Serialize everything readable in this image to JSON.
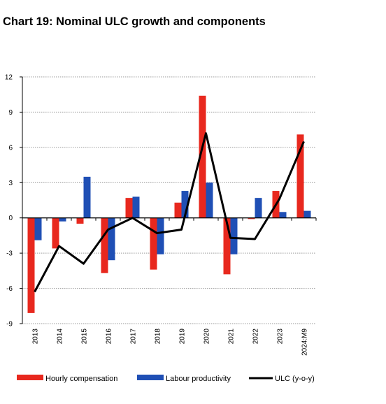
{
  "title": "Chart 19: Nominal ULC growth and components",
  "chart_data": {
    "type": "bar",
    "categories": [
      "2013",
      "2014",
      "2015",
      "2016",
      "2017",
      "2018",
      "2019",
      "2020",
      "2021",
      "2022",
      "2023",
      "2024:M9"
    ],
    "series": [
      {
        "name": "Hourly compensation",
        "kind": "bar",
        "color": "#e8281e",
        "values": [
          -8.1,
          -2.6,
          -0.5,
          -4.7,
          1.7,
          -4.4,
          1.3,
          10.4,
          -4.8,
          -0.1,
          2.3,
          7.1
        ]
      },
      {
        "name": "Labour productivity",
        "kind": "bar",
        "color": "#1f4fb5",
        "values": [
          -1.9,
          -0.3,
          3.5,
          -3.6,
          1.8,
          -3.1,
          2.3,
          3.0,
          -3.1,
          1.7,
          0.5,
          0.6
        ]
      },
      {
        "name": "ULC (y-o-y)",
        "kind": "line",
        "color": "#000000",
        "values": [
          -6.3,
          -2.4,
          -3.9,
          -1.0,
          0.0,
          -1.3,
          -1.0,
          7.2,
          -1.7,
          -1.8,
          1.6,
          6.5
        ]
      }
    ],
    "yticks": [
      12,
      9,
      6,
      3,
      0,
      -3,
      -6,
      -9
    ],
    "ylim": [
      -9,
      12
    ],
    "grid": true,
    "legend_position": "bottom"
  }
}
